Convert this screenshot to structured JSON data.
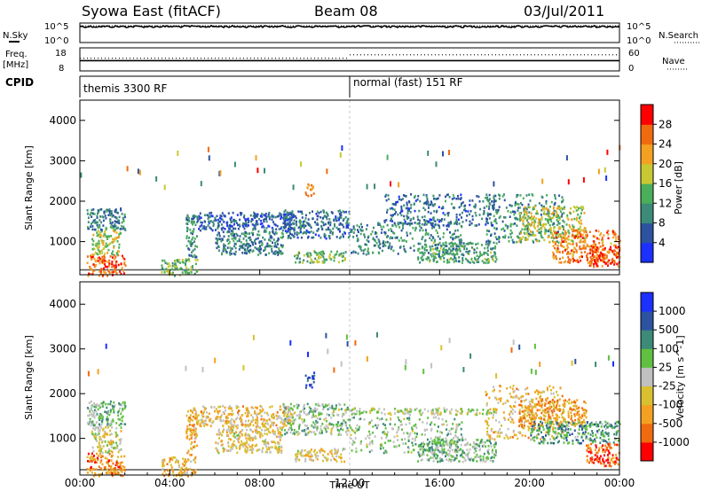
{
  "header": {
    "title": "Syowa East (fitACF)",
    "beam": "Beam 08",
    "date": "03/Jul/2011"
  },
  "sky_panel": {
    "left_label": "N.Sky",
    "right_label": "N.Search",
    "left_ticks": [
      "10^5",
      "10^0"
    ],
    "right_ticks": [
      "10^5",
      "10^0"
    ],
    "nsky_level": 0.82,
    "nsearch_level": 0.86
  },
  "freq_panel": {
    "left_label_1": "Freq.",
    "left_label_2": "[MHz]",
    "right_label": "Nave",
    "left_ticks": [
      "18",
      "8"
    ],
    "right_ticks": [
      "60",
      "0"
    ],
    "freq_level": 0.6,
    "nave_level_before": 0.55,
    "nave_level_after": 0.7,
    "switch_hour": 12
  },
  "cpid_panel": {
    "label": "CPID",
    "segments": [
      {
        "text": "themis 3300 RF",
        "start_hour": 0
      },
      {
        "text": "normal (fast) 151 RF",
        "start_hour": 12
      }
    ]
  },
  "x_axis": {
    "label": "Time UT",
    "ticks": [
      "00:00",
      "04:00",
      "08:00",
      "12:00",
      "16:00",
      "20:00",
      "00:00"
    ],
    "start_hour": 0,
    "end_hour": 24
  },
  "chart_data": [
    {
      "type": "heatmap",
      "name": "power",
      "ylabel": "Slant Range [km]",
      "yticks": [
        "1000",
        "2000",
        "3000",
        "4000"
      ],
      "ylim": [
        180,
        4500
      ],
      "colorbar_label": "Power [dB]",
      "colorbar_ticks": [
        "4",
        "8",
        "12",
        "16",
        "20",
        "24",
        "28"
      ],
      "colorbar_colors": [
        "#1c30ff",
        "#2b53a0",
        "#3c8a78",
        "#4aae5a",
        "#c8c832",
        "#f4a020",
        "#f06a10",
        "#ff0000"
      ],
      "regions": [
        {
          "t0": 0.3,
          "t1": 2.0,
          "r0": 180,
          "r1": 700,
          "level": 0.85
        },
        {
          "t0": 0.5,
          "t1": 1.8,
          "r0": 700,
          "r1": 1300,
          "level": 0.55
        },
        {
          "t0": 0.3,
          "t1": 2.0,
          "r0": 1300,
          "r1": 1850,
          "level": 0.25
        },
        {
          "t0": 3.6,
          "t1": 5.2,
          "r0": 180,
          "r1": 600,
          "level": 0.45
        },
        {
          "t0": 4.7,
          "t1": 5.2,
          "r0": 600,
          "r1": 1700,
          "level": 0.3
        },
        {
          "t0": 5.2,
          "t1": 9.5,
          "r0": 1300,
          "r1": 1750,
          "level": 0.15
        },
        {
          "t0": 6.0,
          "t1": 9.0,
          "r0": 700,
          "r1": 1300,
          "level": 0.25
        },
        {
          "t0": 9.0,
          "t1": 12.0,
          "r0": 1100,
          "r1": 1800,
          "level": 0.2
        },
        {
          "t0": 9.5,
          "t1": 11.8,
          "r0": 500,
          "r1": 800,
          "level": 0.45
        },
        {
          "t0": 10.0,
          "t1": 10.4,
          "r0": 2150,
          "r1": 2500,
          "level": 0.75
        },
        {
          "t0": 12.0,
          "t1": 17.0,
          "r0": 700,
          "r1": 1500,
          "level": 0.3
        },
        {
          "t0": 13.5,
          "t1": 18.5,
          "r0": 1400,
          "r1": 2200,
          "level": 0.2
        },
        {
          "t0": 15.0,
          "t1": 18.5,
          "r0": 500,
          "r1": 1000,
          "level": 0.35
        },
        {
          "t0": 18.0,
          "t1": 21.5,
          "r0": 1000,
          "r1": 2200,
          "level": 0.3
        },
        {
          "t0": 19.5,
          "t1": 22.5,
          "r0": 1000,
          "r1": 1900,
          "level": 0.55
        },
        {
          "t0": 21.0,
          "t1": 24.0,
          "r0": 500,
          "r1": 1300,
          "level": 0.8
        },
        {
          "t0": 22.5,
          "t1": 24.0,
          "r0": 400,
          "r1": 900,
          "level": 0.92
        }
      ]
    },
    {
      "type": "heatmap",
      "name": "velocity",
      "ylabel": "Slant Range [km]",
      "yticks": [
        "1000",
        "2000",
        "3000",
        "4000"
      ],
      "ylim": [
        180,
        4500
      ],
      "colorbar_label": "Velocity [m s^-1]",
      "colorbar_ticks": [
        "-1000",
        "-500",
        "-100",
        "-25",
        "25",
        "100",
        "500",
        "1000"
      ],
      "colorbar_colors": [
        "#ff0000",
        "#f06a10",
        "#f4a020",
        "#d8c030",
        "#c0c0c0",
        "#60c040",
        "#3c8a78",
        "#2b53a0",
        "#1c30ff"
      ],
      "regions": [
        {
          "t0": 0.3,
          "t1": 2.0,
          "r0": 180,
          "r1": 700,
          "level": 0.2
        },
        {
          "t0": 0.5,
          "t1": 1.8,
          "r0": 700,
          "r1": 1300,
          "level": 0.45
        },
        {
          "t0": 0.3,
          "t1": 2.0,
          "r0": 1300,
          "r1": 1850,
          "level": 0.62
        },
        {
          "t0": 3.6,
          "t1": 5.2,
          "r0": 180,
          "r1": 600,
          "level": 0.3
        },
        {
          "t0": 4.7,
          "t1": 5.2,
          "r0": 600,
          "r1": 1700,
          "level": 0.3
        },
        {
          "t0": 5.2,
          "t1": 9.5,
          "r0": 1300,
          "r1": 1750,
          "level": 0.35
        },
        {
          "t0": 6.0,
          "t1": 9.0,
          "r0": 700,
          "r1": 1300,
          "level": 0.4
        },
        {
          "t0": 9.0,
          "t1": 12.0,
          "r0": 1100,
          "r1": 1800,
          "level": 0.58
        },
        {
          "t0": 9.5,
          "t1": 11.8,
          "r0": 500,
          "r1": 800,
          "level": 0.4
        },
        {
          "t0": 10.0,
          "t1": 10.4,
          "r0": 2150,
          "r1": 2500,
          "level": 0.95
        },
        {
          "t0": 12.0,
          "t1": 17.0,
          "r0": 700,
          "r1": 1500,
          "level": 0.58
        },
        {
          "t0": 12.0,
          "t1": 18.5,
          "r0": 1550,
          "r1": 1700,
          "level": 0.5
        },
        {
          "t0": 15.0,
          "t1": 18.5,
          "r0": 500,
          "r1": 1000,
          "level": 0.62
        },
        {
          "t0": 18.0,
          "t1": 21.5,
          "r0": 1000,
          "r1": 2200,
          "level": 0.35
        },
        {
          "t0": 19.5,
          "t1": 22.5,
          "r0": 1300,
          "r1": 1900,
          "level": 0.25
        },
        {
          "t0": 20.0,
          "t1": 24.0,
          "r0": 900,
          "r1": 1400,
          "level": 0.7
        },
        {
          "t0": 22.5,
          "t1": 24.0,
          "r0": 400,
          "r1": 900,
          "level": 0.1
        }
      ]
    }
  ]
}
